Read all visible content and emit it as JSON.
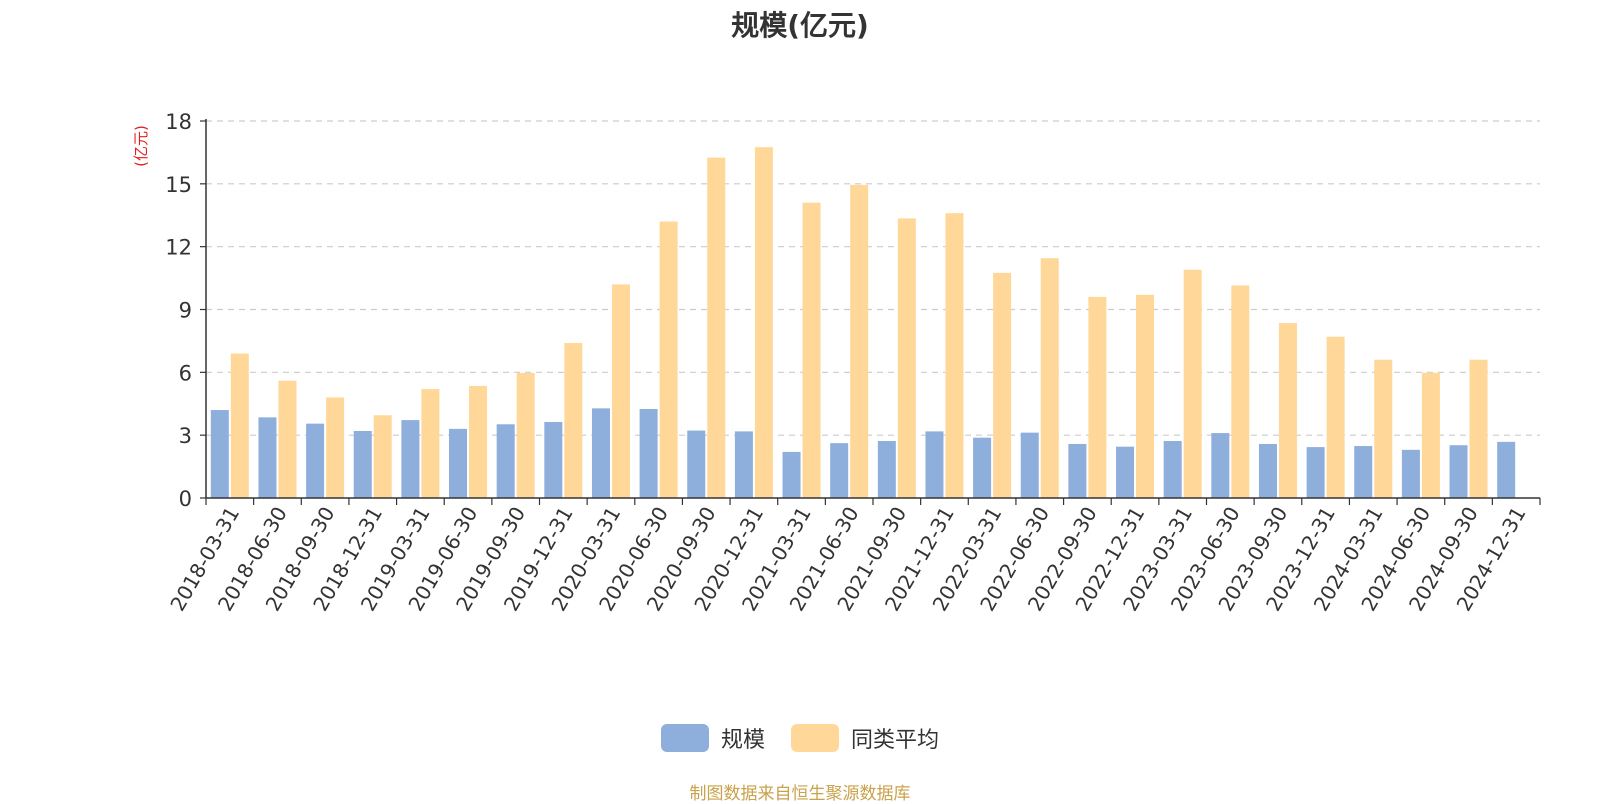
{
  "chart_data": {
    "type": "bar",
    "title": "规模(亿元)",
    "ylabel": "(亿元)",
    "ylim": [
      0,
      18
    ],
    "yticks": [
      0,
      3,
      6,
      9,
      12,
      15,
      18
    ],
    "grid": true,
    "legend_position": "bottom-center",
    "categories": [
      "2018-03-31",
      "2018-06-30",
      "2018-09-30",
      "2018-12-31",
      "2019-03-31",
      "2019-06-30",
      "2019-09-30",
      "2019-12-31",
      "2020-03-31",
      "2020-06-30",
      "2020-09-30",
      "2020-12-31",
      "2021-03-31",
      "2021-06-30",
      "2021-09-30",
      "2021-12-31",
      "2022-03-31",
      "2022-06-30",
      "2022-09-30",
      "2022-12-31",
      "2023-03-31",
      "2023-06-30",
      "2023-09-30",
      "2023-12-31",
      "2024-03-31",
      "2024-06-30",
      "2024-09-30",
      "2024-12-31"
    ],
    "series": [
      {
        "name": "规模",
        "color": "#8eaedc",
        "values": [
          4.2,
          3.85,
          3.55,
          3.2,
          3.72,
          3.3,
          3.52,
          3.63,
          4.28,
          4.25,
          3.22,
          3.18,
          2.2,
          2.62,
          2.72,
          3.18,
          2.88,
          3.12,
          2.58,
          2.45,
          2.72,
          3.1,
          2.58,
          2.43,
          2.48,
          2.3,
          2.52,
          2.68
        ]
      },
      {
        "name": "同类平均",
        "color": "#ffd899",
        "values": [
          6.9,
          5.6,
          4.8,
          3.95,
          5.2,
          5.35,
          5.97,
          7.4,
          10.2,
          13.2,
          16.25,
          16.75,
          14.1,
          14.95,
          13.35,
          13.6,
          10.75,
          11.45,
          9.6,
          9.7,
          10.9,
          10.15,
          8.35,
          7.7,
          6.6,
          5.98,
          6.6,
          null
        ]
      }
    ],
    "source": "制图数据来自恒生聚源数据库"
  }
}
